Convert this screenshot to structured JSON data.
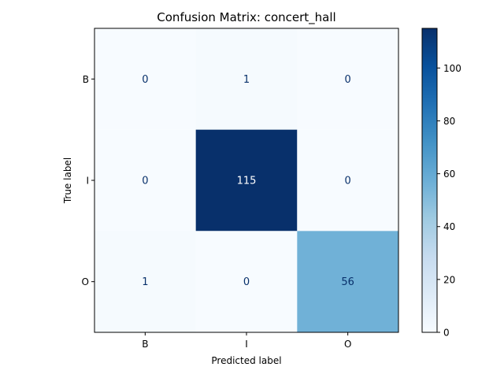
{
  "chart_data": {
    "type": "heatmap",
    "title": "Confusion Matrix: concert_hall",
    "xlabel": "Predicted label",
    "ylabel": "True label",
    "x_categories": [
      "B",
      "I",
      "O"
    ],
    "y_categories": [
      "B",
      "I",
      "O"
    ],
    "values": [
      [
        0,
        1,
        0
      ],
      [
        0,
        115,
        0
      ],
      [
        1,
        0,
        56
      ]
    ],
    "colormap": "Blues",
    "colorbar": {
      "min": 0,
      "max": 115,
      "ticks": [
        0,
        20,
        40,
        60,
        80,
        100
      ]
    },
    "grid": false
  }
}
